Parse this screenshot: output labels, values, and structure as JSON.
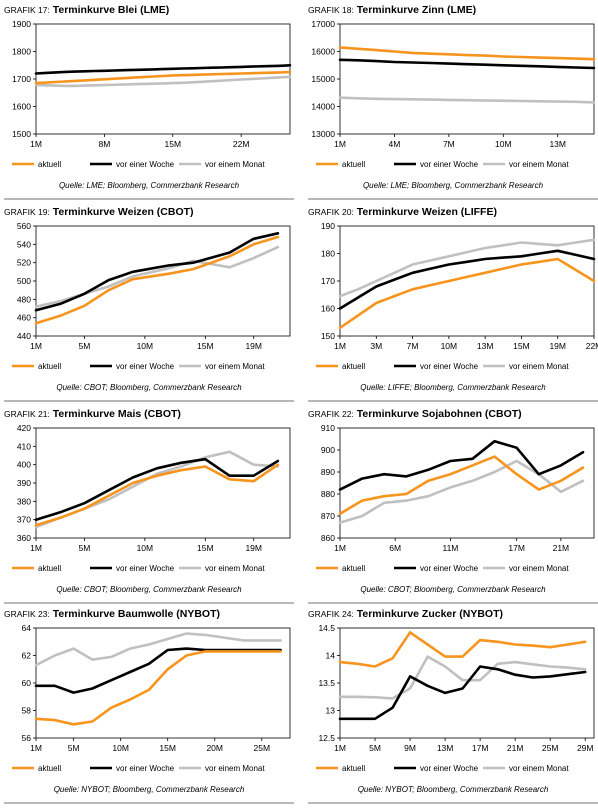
{
  "legend_labels": [
    "aktuell",
    "vor einer Woche",
    "vor einem Monat"
  ],
  "colors": {
    "aktuell": "#f7941d",
    "woche": "#000000",
    "monat": "#c0c0c0"
  },
  "chart_data": [
    {
      "type": "line",
      "title_label": "GRAFIK 17:",
      "title": "Terminkurve Blei (LME)",
      "source": "Quelle: LME; Bloomberg, Commerzbank Research",
      "xticks": [
        "1M",
        "8M",
        "15M",
        "22M"
      ],
      "xtick_pos": [
        1,
        8,
        15,
        22
      ],
      "xlim": [
        1,
        27
      ],
      "ylim": [
        1500,
        1900
      ],
      "yticks": [
        1500,
        1600,
        1700,
        1800,
        1900
      ],
      "x": [
        1,
        2,
        3,
        4,
        5,
        6,
        7,
        8,
        9,
        10,
        11,
        12,
        13,
        14,
        15,
        16,
        17,
        18,
        19,
        20,
        21,
        22,
        23,
        24,
        25,
        26,
        27
      ],
      "series": [
        {
          "name": "aktuell",
          "values": [
            1685,
            1687,
            1689,
            1691,
            1693,
            1695,
            1697,
            1699,
            1701,
            1703,
            1705,
            1707,
            1709,
            1711,
            1713,
            1714,
            1715,
            1716,
            1717,
            1718,
            1719,
            1720,
            1721,
            1722,
            1723,
            1724,
            1725
          ]
        },
        {
          "name": "vor einer Woche",
          "values": [
            1720,
            1722,
            1724,
            1726,
            1727,
            1728,
            1729,
            1730,
            1731,
            1732,
            1733,
            1734,
            1735,
            1736,
            1737,
            1738,
            1739,
            1740,
            1741,
            1742,
            1743,
            1744,
            1745,
            1746,
            1747,
            1748,
            1750
          ]
        },
        {
          "name": "vor einem Monat",
          "values": [
            1678,
            1677,
            1676,
            1675,
            1675,
            1676,
            1677,
            1678,
            1679,
            1680,
            1681,
            1682,
            1683,
            1684,
            1685,
            1686,
            1688,
            1690,
            1692,
            1694,
            1696,
            1698,
            1700,
            1702,
            1704,
            1706,
            1708
          ]
        }
      ]
    },
    {
      "type": "line",
      "title_label": "GRAFIK 18:",
      "title": "Terminkurve Zinn (LME)",
      "source": "Quelle: LME; Bloomberg, Commerzbank Research",
      "xticks": [
        "1M",
        "4M",
        "7M",
        "10M",
        "13M"
      ],
      "xtick_pos": [
        1,
        4,
        7,
        10,
        13
      ],
      "xlim": [
        1,
        15
      ],
      "ylim": [
        13000,
        17000
      ],
      "yticks": [
        13000,
        14000,
        15000,
        16000,
        17000
      ],
      "x": [
        1,
        2,
        3,
        4,
        5,
        6,
        7,
        8,
        9,
        10,
        11,
        12,
        13,
        14,
        15
      ],
      "series": [
        {
          "name": "aktuell",
          "values": [
            16150,
            16100,
            16050,
            16000,
            15950,
            15920,
            15900,
            15870,
            15850,
            15820,
            15800,
            15780,
            15760,
            15740,
            15720
          ]
        },
        {
          "name": "vor einer Woche",
          "values": [
            15700,
            15680,
            15650,
            15620,
            15600,
            15580,
            15560,
            15540,
            15520,
            15500,
            15480,
            15460,
            15440,
            15420,
            15400
          ]
        },
        {
          "name": "vor einem Monat",
          "values": [
            14320,
            14300,
            14280,
            14270,
            14260,
            14250,
            14240,
            14230,
            14220,
            14210,
            14200,
            14190,
            14180,
            14170,
            14150
          ]
        }
      ]
    },
    {
      "type": "line",
      "title_label": "GRAFIK 19:",
      "title": "Terminkurve Weizen (CBOT)",
      "source": "Quelle: CBOT; Bloomberg, Commerzbank Research",
      "xticks": [
        "1M",
        "5M",
        "10M",
        "15M",
        "19M"
      ],
      "xtick_pos": [
        1,
        5,
        10,
        15,
        19
      ],
      "xlim": [
        1,
        22
      ],
      "ylim": [
        440,
        560
      ],
      "yticks": [
        440,
        460,
        480,
        500,
        520,
        540,
        560
      ],
      "x": [
        1,
        3,
        5,
        7,
        9,
        12,
        14,
        17,
        19,
        21
      ],
      "series": [
        {
          "name": "aktuell",
          "values": [
            454,
            462,
            473,
            490,
            502,
            508,
            513,
            527,
            540,
            548
          ]
        },
        {
          "name": "vor einer Woche",
          "values": [
            468,
            475,
            486,
            501,
            510,
            517,
            520,
            531,
            546,
            552
          ]
        },
        {
          "name": "vor einem Monat",
          "values": [
            472,
            478,
            486,
            494,
            505,
            514,
            522,
            515,
            525,
            537
          ]
        }
      ]
    },
    {
      "type": "line",
      "title_label": "GRAFIK 20:",
      "title": "Terminkurve Weizen (LIFFE)",
      "source": "Quelle: LIFFE; Bloomberg, Commerzbank Research",
      "xticks": [
        "1M",
        "3M",
        "7M",
        "10M",
        "13M",
        "15M",
        "19M",
        "22M"
      ],
      "xtick_pos": [
        1,
        2,
        3,
        4,
        5,
        6,
        7,
        8
      ],
      "xlim": [
        1,
        8
      ],
      "ylim": [
        150,
        190
      ],
      "yticks": [
        150,
        160,
        170,
        180,
        190
      ],
      "x": [
        1,
        1.5,
        2,
        2.5,
        3,
        3.5,
        4,
        4.5,
        5,
        5.5,
        6,
        6.5,
        7,
        7.5,
        8
      ],
      "series": [
        {
          "name": "aktuell",
          "values": [
            153,
            157.5,
            162,
            164.5,
            167,
            168.5,
            170,
            171.5,
            173,
            174.5,
            176,
            177,
            178,
            174,
            170
          ]
        },
        {
          "name": "vor einer Woche",
          "values": [
            160,
            164,
            168,
            170.5,
            173,
            174.5,
            176,
            177,
            178,
            178.5,
            179,
            180,
            181,
            179.5,
            178
          ]
        },
        {
          "name": "vor einem Monat",
          "values": [
            164.5,
            167,
            170,
            173,
            176,
            177.5,
            179,
            180.5,
            182,
            183,
            184,
            183.5,
            183,
            184,
            185
          ]
        }
      ]
    },
    {
      "type": "line",
      "title_label": "GRAFIK 21:",
      "title": "Terminkurve Mais (CBOT)",
      "source": "Quelle: CBOT; Bloomberg, Commerzbank Research",
      "xticks": [
        "1M",
        "5M",
        "10M",
        "15M",
        "19M"
      ],
      "xtick_pos": [
        1,
        5,
        10,
        15,
        19
      ],
      "xlim": [
        1,
        22
      ],
      "ylim": [
        360,
        420
      ],
      "yticks": [
        360,
        370,
        380,
        390,
        400,
        410,
        420
      ],
      "x": [
        1,
        3,
        5,
        7,
        9,
        11,
        13,
        15,
        17,
        19,
        21
      ],
      "series": [
        {
          "name": "aktuell",
          "values": [
            367,
            371,
            376,
            383,
            390,
            394,
            397,
            399,
            392,
            391,
            400
          ]
        },
        {
          "name": "vor einer Woche",
          "values": [
            370,
            374,
            379,
            386,
            393,
            398,
            401,
            403,
            394,
            394,
            402
          ]
        },
        {
          "name": "vor einem Monat",
          "values": [
            366,
            371,
            376,
            381,
            388,
            395,
            399,
            404,
            407,
            400,
            399
          ]
        }
      ]
    },
    {
      "type": "line",
      "title_label": "GRAFIK 22:",
      "title": "Terminkurve Sojabohnen (CBOT)",
      "source": "Quelle: CBOT; Bloomberg, Commerzbank Research",
      "xticks": [
        "1M",
        "6M",
        "11M",
        "17M",
        "21M"
      ],
      "xtick_pos": [
        1,
        6,
        11,
        17,
        21
      ],
      "xlim": [
        1,
        24
      ],
      "ylim": [
        860,
        910
      ],
      "yticks": [
        860,
        870,
        880,
        890,
        900,
        910
      ],
      "x": [
        1,
        3,
        5,
        7,
        9,
        11,
        13,
        15,
        17,
        19,
        21,
        23
      ],
      "series": [
        {
          "name": "aktuell",
          "values": [
            871,
            877,
            879,
            880,
            886,
            889,
            893,
            897,
            889,
            882,
            886,
            892
          ]
        },
        {
          "name": "vor einer Woche",
          "values": [
            882,
            887,
            889,
            888,
            891,
            895,
            896,
            904,
            901,
            889,
            893,
            899
          ]
        },
        {
          "name": "vor einem Monat",
          "values": [
            867,
            870,
            876,
            877,
            879,
            883,
            886,
            890,
            895,
            889,
            881,
            886
          ]
        }
      ]
    },
    {
      "type": "line",
      "title_label": "GRAFIK 23:",
      "title": "Terminkurve Baumwolle (NYBOT)",
      "source": "Quelle: NYBOT; Bloomberg, Commerzbank Research",
      "xticks": [
        "1M",
        "5M",
        "10M",
        "15M",
        "20M",
        "25M"
      ],
      "xtick_pos": [
        1,
        5,
        10,
        15,
        20,
        25
      ],
      "xlim": [
        1,
        28
      ],
      "ylim": [
        56,
        64
      ],
      "yticks": [
        56,
        58,
        60,
        62,
        64
      ],
      "x": [
        1,
        3,
        5,
        7,
        9,
        11,
        13,
        15,
        17,
        19,
        21,
        23,
        25,
        27
      ],
      "series": [
        {
          "name": "aktuell",
          "values": [
            57.4,
            57.3,
            57.0,
            57.2,
            58.2,
            58.8,
            59.5,
            61.0,
            62.0,
            62.3,
            62.3,
            62.3,
            62.3,
            62.3
          ]
        },
        {
          "name": "vor einer Woche",
          "values": [
            59.8,
            59.8,
            59.3,
            59.6,
            60.2,
            60.8,
            61.4,
            62.4,
            62.5,
            62.4,
            62.4,
            62.4,
            62.4,
            62.4
          ]
        },
        {
          "name": "vor einem Monat",
          "values": [
            61.3,
            62.0,
            62.5,
            61.7,
            61.9,
            62.5,
            62.8,
            63.2,
            63.6,
            63.5,
            63.3,
            63.1,
            63.1,
            63.1
          ]
        }
      ]
    },
    {
      "type": "line",
      "title_label": "GRAFIK 24:",
      "title": "Terminkurve Zucker (NYBOT)",
      "source": "Quelle: NYBOT; Bloomberg, Commerzbank Research",
      "xticks": [
        "1M",
        "5M",
        "9M",
        "13M",
        "17M",
        "21M",
        "25M",
        "29M"
      ],
      "xtick_pos": [
        1,
        5,
        9,
        13,
        17,
        21,
        25,
        29
      ],
      "xlim": [
        1,
        30
      ],
      "ylim": [
        12.5,
        14.5
      ],
      "yticks": [
        12.5,
        13.0,
        13.5,
        14.0,
        14.5
      ],
      "x": [
        1,
        3,
        5,
        7,
        9,
        11,
        13,
        15,
        17,
        19,
        21,
        23,
        25,
        27,
        29
      ],
      "series": [
        {
          "name": "aktuell",
          "values": [
            13.88,
            13.85,
            13.8,
            13.95,
            14.42,
            14.2,
            13.98,
            13.98,
            14.28,
            14.25,
            14.2,
            14.18,
            14.15,
            14.2,
            14.25
          ]
        },
        {
          "name": "vor einer Woche",
          "values": [
            12.85,
            12.85,
            12.85,
            13.05,
            13.62,
            13.45,
            13.32,
            13.4,
            13.8,
            13.75,
            13.65,
            13.6,
            13.62,
            13.66,
            13.7
          ]
        },
        {
          "name": "vor einem Monat",
          "values": [
            13.25,
            13.25,
            13.24,
            13.22,
            13.4,
            13.98,
            13.8,
            13.55,
            13.55,
            13.85,
            13.88,
            13.84,
            13.8,
            13.78,
            13.75
          ]
        }
      ]
    }
  ]
}
